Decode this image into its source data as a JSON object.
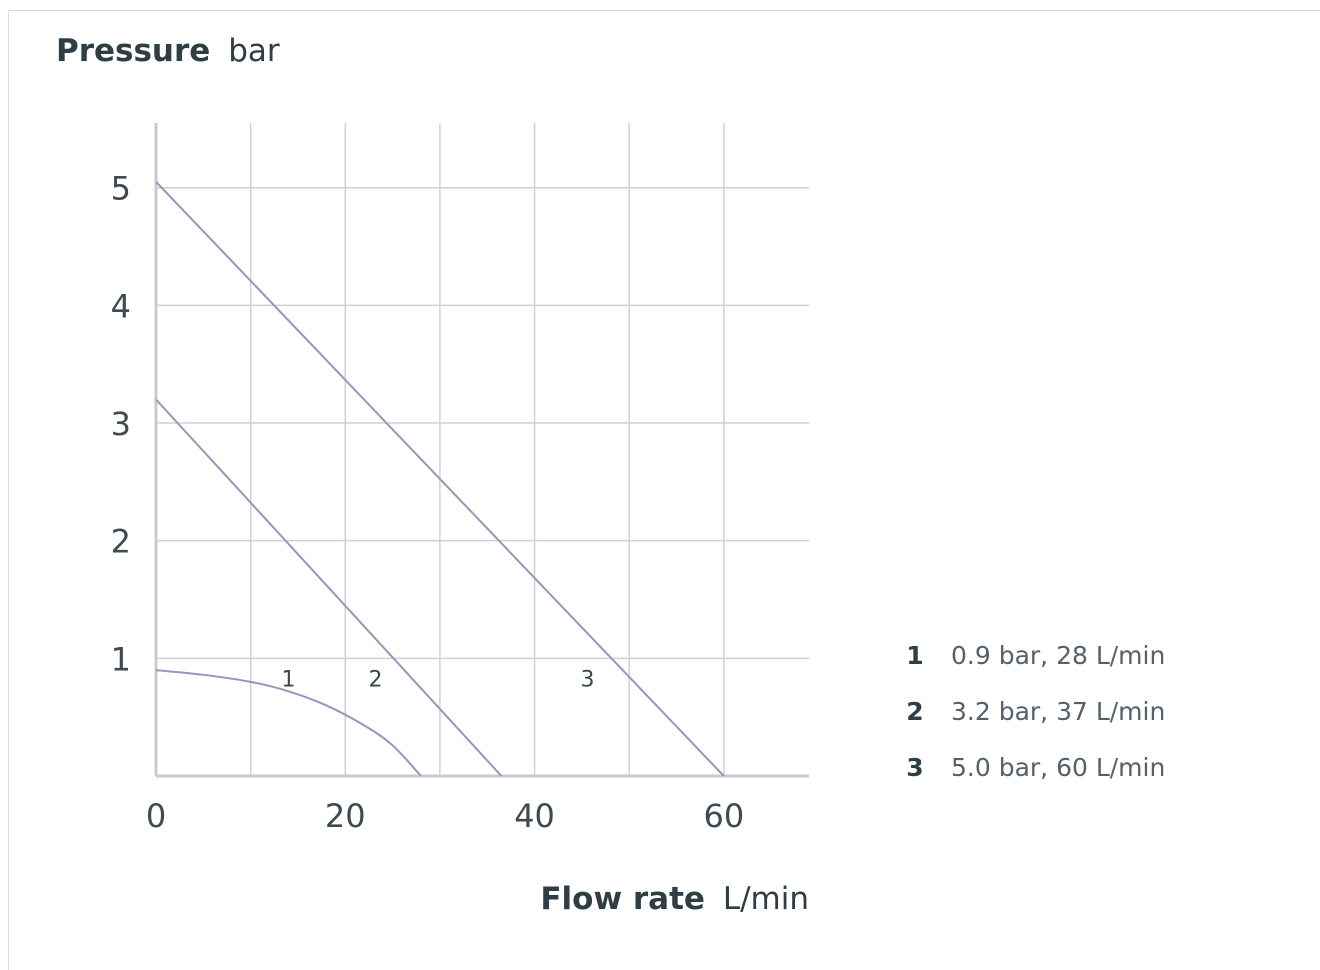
{
  "chart_data": {
    "type": "line",
    "title": "",
    "ylabel": {
      "bold": "Pressure",
      "unit": "bar"
    },
    "xlabel": {
      "bold": "Flow rate",
      "unit": "L/min"
    },
    "xlim": [
      0,
      69
    ],
    "ylim": [
      0,
      5.55
    ],
    "x_ticks": [
      0,
      20,
      40,
      60
    ],
    "x_grid": [
      0,
      10,
      20,
      30,
      40,
      50,
      60
    ],
    "y_ticks": [
      1,
      2,
      3,
      4,
      5
    ],
    "grid": true,
    "legend_placement": "right",
    "series": [
      {
        "name": "1",
        "label": "0.9 bar, 28 L/min",
        "x": [
          0,
          5,
          10,
          14,
          18,
          22,
          25,
          28
        ],
        "y": [
          0.9,
          0.86,
          0.8,
          0.72,
          0.6,
          0.43,
          0.26,
          0.0
        ],
        "label_at": [
          14,
          0.83
        ]
      },
      {
        "name": "2",
        "label": "3.2 bar, 37 L/min",
        "x": [
          0,
          36.5
        ],
        "y": [
          3.2,
          0.0
        ],
        "label_at": [
          23.2,
          0.83
        ]
      },
      {
        "name": "3",
        "label": "5.0 bar, 60 L/min",
        "x": [
          0,
          60
        ],
        "y": [
          5.05,
          0.0
        ],
        "label_at": [
          45.6,
          0.83
        ]
      }
    ],
    "colors": {
      "series": "#9298bd",
      "grid": "#cfd2d4",
      "axis": "#c8cbce"
    }
  }
}
